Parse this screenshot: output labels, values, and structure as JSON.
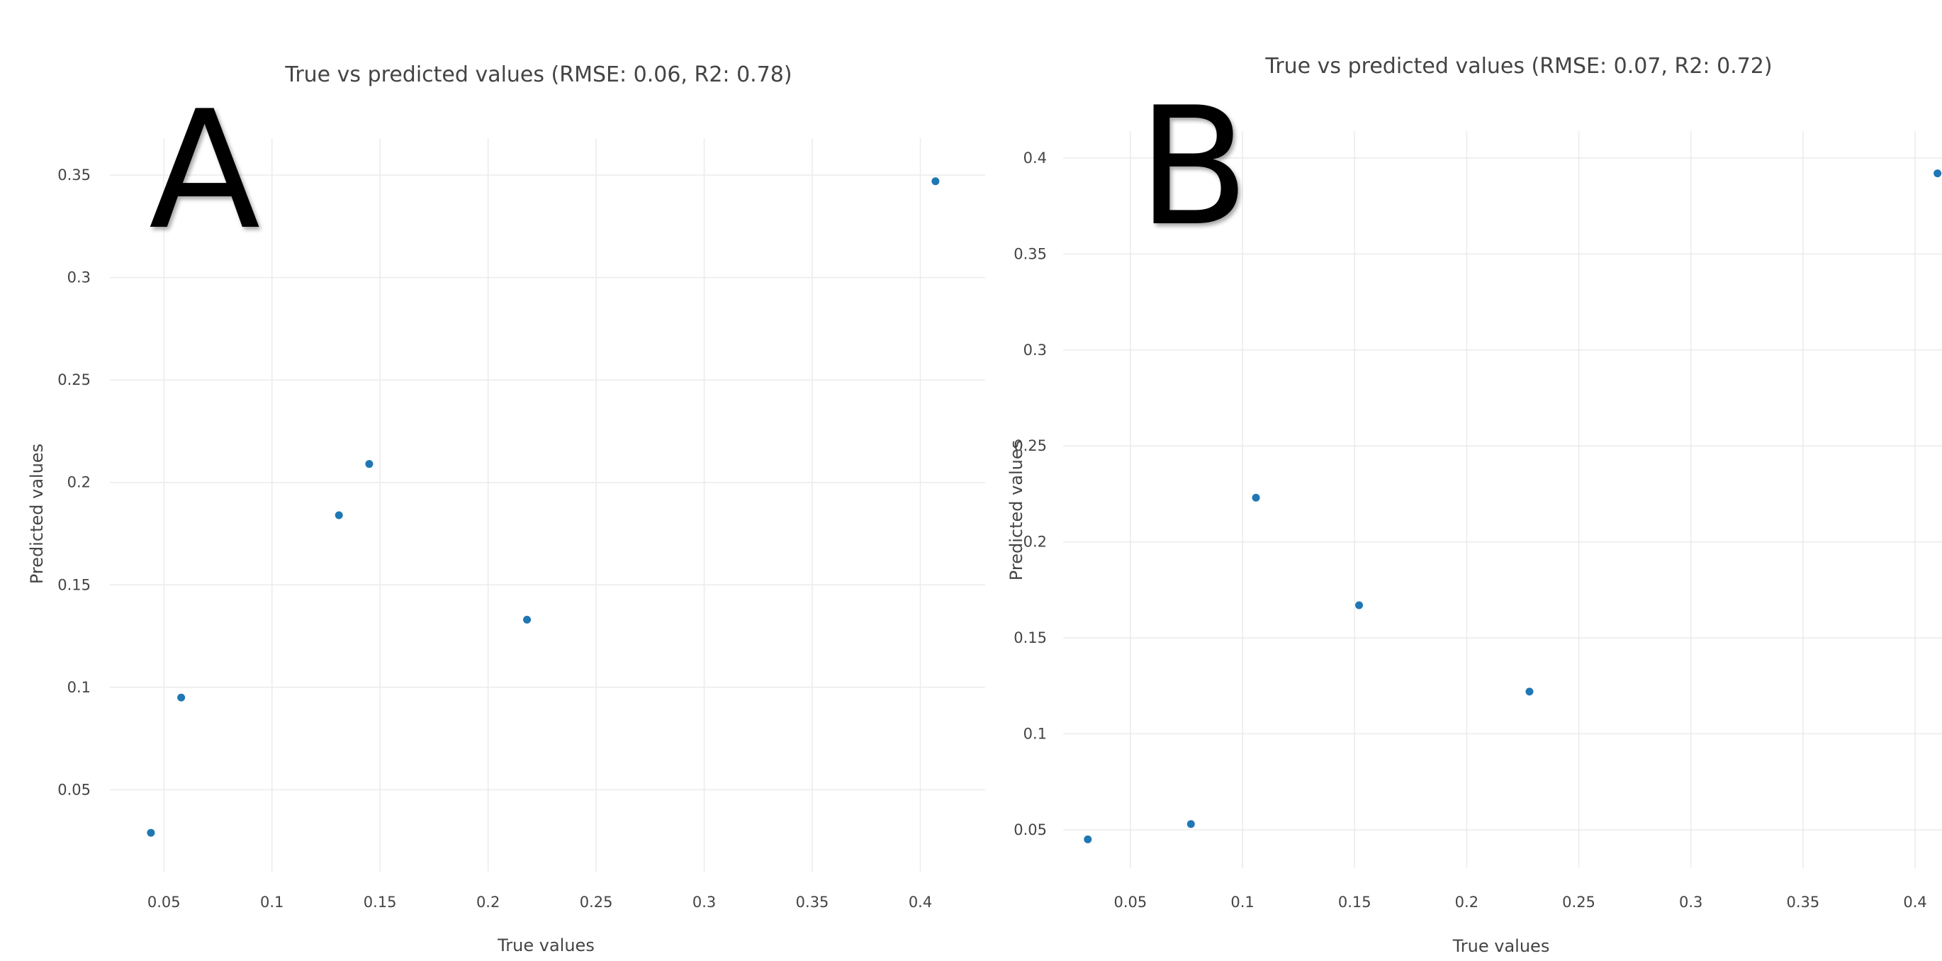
{
  "chart_data": [
    {
      "type": "scatter",
      "panel_label": "A",
      "title": "True vs predicted values (RMSE: 0.06, R2: 0.78)",
      "xlabel": "True values",
      "ylabel": "Predicted values",
      "xlim": [
        0.025,
        0.43
      ],
      "ylim": [
        0.01,
        0.368
      ],
      "xticks": [
        0.05,
        0.1,
        0.15,
        0.2,
        0.25,
        0.3,
        0.35,
        0.4
      ],
      "xtick_labels": [
        "0.05",
        "0.1",
        "0.15",
        "0.2",
        "0.25",
        "0.3",
        "0.35",
        "0.4"
      ],
      "yticks": [
        0.05,
        0.1,
        0.15,
        0.2,
        0.25,
        0.3,
        0.35
      ],
      "ytick_labels": [
        "0.05",
        "0.1",
        "0.15",
        "0.2",
        "0.25",
        "0.3",
        "0.35"
      ],
      "grid": true,
      "color": "#1f77b4",
      "x": [
        0.044,
        0.058,
        0.131,
        0.145,
        0.218,
        0.407
      ],
      "y": [
        0.029,
        0.095,
        0.184,
        0.209,
        0.133,
        0.347
      ]
    },
    {
      "type": "scatter",
      "panel_label": "B",
      "title": "True vs predicted values (RMSE: 0.07, R2: 0.72)",
      "xlabel": "True values",
      "ylabel": "Predicted values",
      "xlim": [
        0.02,
        0.412
      ],
      "ylim": [
        0.03,
        0.414
      ],
      "xticks": [
        0.05,
        0.1,
        0.15,
        0.2,
        0.25,
        0.3,
        0.35,
        0.4
      ],
      "xtick_labels": [
        "0.05",
        "0.1",
        "0.15",
        "0.2",
        "0.25",
        "0.3",
        "0.35",
        "0.4"
      ],
      "yticks": [
        0.05,
        0.1,
        0.15,
        0.2,
        0.25,
        0.3,
        0.35,
        0.4
      ],
      "ytick_labels": [
        "0.05",
        "0.1",
        "0.15",
        "0.2",
        "0.25",
        "0.3",
        "0.35",
        "0.4"
      ],
      "grid": true,
      "color": "#1f77b4",
      "x": [
        0.031,
        0.077,
        0.106,
        0.152,
        0.228,
        0.41
      ],
      "y": [
        0.045,
        0.053,
        0.223,
        0.167,
        0.122,
        0.392
      ]
    }
  ]
}
